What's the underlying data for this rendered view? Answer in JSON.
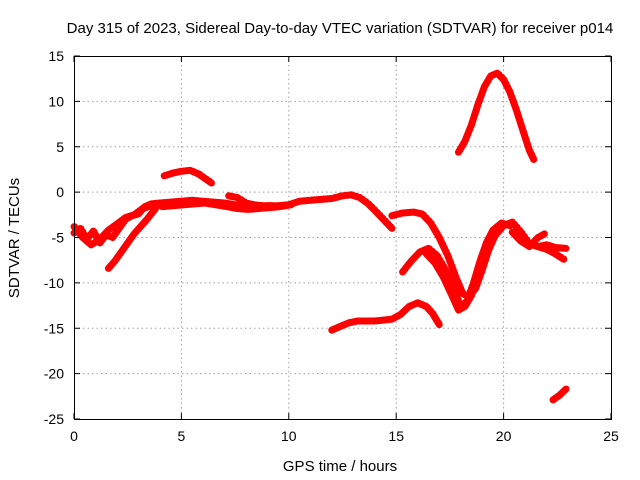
{
  "chart_data": {
    "type": "line",
    "title": "Day 315 of 2023, Sidereal Day-to-day VTEC variation (SDTVAR) for receiver p014",
    "xlabel": "GPS time / hours",
    "ylabel": "SDTVAR / TECUs",
    "xlim": [
      0,
      25
    ],
    "ylim": [
      -25,
      15
    ],
    "xticks": [
      0,
      5,
      10,
      15,
      20,
      25
    ],
    "yticks": [
      -25,
      -20,
      -15,
      -10,
      -5,
      0,
      5,
      10,
      15
    ],
    "grid": true,
    "legend": "none",
    "color": "#ff0000",
    "series": [
      {
        "name": "arc-1",
        "points": [
          [
            0.0,
            -4.5
          ],
          [
            0.3,
            -4.0
          ],
          [
            0.6,
            -5.2
          ],
          [
            0.9,
            -4.3
          ],
          [
            1.2,
            -5.6
          ],
          [
            1.5,
            -4.7
          ],
          [
            1.8,
            -5.0
          ],
          [
            2.1,
            -4.0
          ],
          [
            2.4,
            -3.0
          ],
          [
            2.7,
            -2.6
          ],
          [
            3.0,
            -2.4
          ],
          [
            3.3,
            -1.6
          ],
          [
            3.6,
            -1.3
          ],
          [
            4.0,
            -1.2
          ],
          [
            4.5,
            -1.1
          ],
          [
            5.0,
            -1.0
          ],
          [
            5.5,
            -0.9
          ],
          [
            6.0,
            -1.0
          ],
          [
            6.5,
            -1.1
          ],
          [
            7.0,
            -1.2
          ],
          [
            7.5,
            -1.4
          ],
          [
            8.0,
            -1.5
          ],
          [
            8.5,
            -1.6
          ],
          [
            9.0,
            -1.5
          ],
          [
            9.5,
            -1.5
          ],
          [
            10.0,
            -1.4
          ],
          [
            10.5,
            -1.0
          ],
          [
            11.0,
            -0.9
          ],
          [
            11.5,
            -0.8
          ],
          [
            12.0,
            -0.7
          ],
          [
            12.5,
            -0.4
          ],
          [
            12.9,
            -0.3
          ],
          [
            13.3,
            -0.6
          ],
          [
            13.7,
            -1.3
          ],
          [
            14.0,
            -2.0
          ],
          [
            14.4,
            -3.0
          ],
          [
            14.8,
            -4.0
          ]
        ]
      },
      {
        "name": "arc-2",
        "points": [
          [
            0.0,
            -3.8
          ],
          [
            0.4,
            -5.0
          ],
          [
            0.8,
            -5.8
          ],
          [
            1.2,
            -5.2
          ],
          [
            1.6,
            -4.2
          ],
          [
            2.0,
            -3.5
          ],
          [
            2.4,
            -2.8
          ],
          [
            2.8,
            -2.5
          ],
          [
            3.2,
            -1.8
          ],
          [
            3.6,
            -1.5
          ],
          [
            4.0,
            -1.4
          ],
          [
            4.5,
            -1.3
          ],
          [
            5.0,
            -1.2
          ]
        ]
      },
      {
        "name": "arc-3",
        "points": [
          [
            1.6,
            -8.4
          ],
          [
            1.9,
            -7.6
          ],
          [
            2.2,
            -6.6
          ],
          [
            2.5,
            -5.6
          ],
          [
            2.8,
            -4.6
          ],
          [
            3.1,
            -3.8
          ],
          [
            3.4,
            -3.0
          ],
          [
            3.6,
            -2.4
          ],
          [
            3.8,
            -1.8
          ]
        ]
      },
      {
        "name": "arc-4",
        "points": [
          [
            4.1,
            -1.6
          ],
          [
            4.6,
            -1.5
          ],
          [
            5.1,
            -1.4
          ],
          [
            5.6,
            -1.3
          ],
          [
            6.1,
            -1.2
          ],
          [
            6.6,
            -1.4
          ],
          [
            7.1,
            -1.6
          ],
          [
            7.6,
            -1.8
          ],
          [
            8.1,
            -1.9
          ],
          [
            8.6,
            -1.8
          ],
          [
            9.1,
            -1.7
          ],
          [
            9.6,
            -1.6
          ],
          [
            10.1,
            -1.4
          ]
        ]
      },
      {
        "name": "arc-5",
        "points": [
          [
            7.2,
            -0.4
          ],
          [
            7.6,
            -0.6
          ],
          [
            8.0,
            -1.2
          ],
          [
            8.4,
            -1.4
          ],
          [
            8.8,
            -1.5
          ],
          [
            9.2,
            -1.5
          ]
        ]
      },
      {
        "name": "arc-6",
        "points": [
          [
            4.2,
            1.8
          ],
          [
            4.6,
            2.1
          ],
          [
            5.0,
            2.3
          ],
          [
            5.4,
            2.4
          ],
          [
            5.8,
            2.0
          ],
          [
            6.1,
            1.5
          ],
          [
            6.4,
            1.0
          ]
        ]
      },
      {
        "name": "arc-7",
        "points": [
          [
            14.8,
            -2.6
          ],
          [
            15.3,
            -2.3
          ],
          [
            15.8,
            -2.2
          ],
          [
            16.2,
            -2.4
          ],
          [
            16.6,
            -3.4
          ],
          [
            17.0,
            -5.0
          ],
          [
            17.4,
            -7.0
          ],
          [
            17.8,
            -9.5
          ],
          [
            18.1,
            -11.2
          ],
          [
            18.4,
            -11.5
          ],
          [
            18.7,
            -10.6
          ],
          [
            19.0,
            -8.6
          ],
          [
            19.3,
            -6.4
          ],
          [
            19.6,
            -4.8
          ],
          [
            20.0,
            -3.7
          ],
          [
            20.4,
            -3.3
          ],
          [
            20.8,
            -4.4
          ],
          [
            21.2,
            -5.7
          ],
          [
            21.6,
            -6.0
          ],
          [
            22.0,
            -5.8
          ],
          [
            22.4,
            -6.1
          ],
          [
            22.9,
            -6.2
          ]
        ]
      },
      {
        "name": "arc-8",
        "points": [
          [
            15.3,
            -8.8
          ],
          [
            15.7,
            -7.6
          ],
          [
            16.1,
            -6.6
          ],
          [
            16.5,
            -6.2
          ],
          [
            16.9,
            -7.0
          ],
          [
            17.3,
            -8.6
          ],
          [
            17.7,
            -10.8
          ],
          [
            18.0,
            -12.6
          ],
          [
            18.3,
            -12.0
          ],
          [
            18.6,
            -10.0
          ],
          [
            18.9,
            -7.6
          ],
          [
            19.2,
            -5.6
          ],
          [
            19.5,
            -4.2
          ],
          [
            19.9,
            -3.4
          ],
          [
            20.3,
            -3.7
          ]
        ]
      },
      {
        "name": "arc-9",
        "points": [
          [
            16.4,
            -6.8
          ],
          [
            16.8,
            -7.8
          ],
          [
            17.2,
            -9.4
          ],
          [
            17.6,
            -11.4
          ],
          [
            17.9,
            -13.0
          ],
          [
            18.2,
            -12.6
          ],
          [
            18.5,
            -11.4
          ]
        ]
      },
      {
        "name": "arc-10",
        "points": [
          [
            20.4,
            -4.4
          ],
          [
            20.8,
            -5.4
          ],
          [
            21.2,
            -6.0
          ],
          [
            21.6,
            -5.0
          ],
          [
            21.9,
            -4.6
          ]
        ]
      },
      {
        "name": "arc-11",
        "points": [
          [
            21.6,
            -6.0
          ],
          [
            22.0,
            -6.3
          ],
          [
            22.4,
            -6.8
          ],
          [
            22.8,
            -7.4
          ]
        ]
      },
      {
        "name": "arc-12",
        "points": [
          [
            12.0,
            -15.2
          ],
          [
            12.4,
            -14.8
          ],
          [
            12.8,
            -14.4
          ],
          [
            13.2,
            -14.2
          ],
          [
            13.6,
            -14.2
          ],
          [
            14.0,
            -14.2
          ],
          [
            14.4,
            -14.1
          ],
          [
            14.8,
            -14.0
          ],
          [
            15.2,
            -13.5
          ],
          [
            15.6,
            -12.6
          ],
          [
            16.0,
            -12.2
          ],
          [
            16.4,
            -12.6
          ],
          [
            16.7,
            -13.4
          ],
          [
            17.0,
            -14.6
          ]
        ]
      },
      {
        "name": "arc-13",
        "points": [
          [
            17.9,
            4.4
          ],
          [
            18.2,
            5.6
          ],
          [
            18.5,
            7.4
          ],
          [
            18.8,
            9.6
          ],
          [
            19.1,
            11.6
          ],
          [
            19.4,
            12.8
          ],
          [
            19.7,
            13.1
          ],
          [
            20.0,
            12.4
          ],
          [
            20.3,
            11.0
          ],
          [
            20.6,
            9.0
          ],
          [
            20.9,
            6.8
          ],
          [
            21.2,
            4.6
          ],
          [
            21.4,
            3.6
          ]
        ]
      },
      {
        "name": "arc-14",
        "points": [
          [
            22.3,
            -22.9
          ],
          [
            22.6,
            -22.4
          ],
          [
            22.9,
            -21.7
          ]
        ]
      }
    ]
  }
}
